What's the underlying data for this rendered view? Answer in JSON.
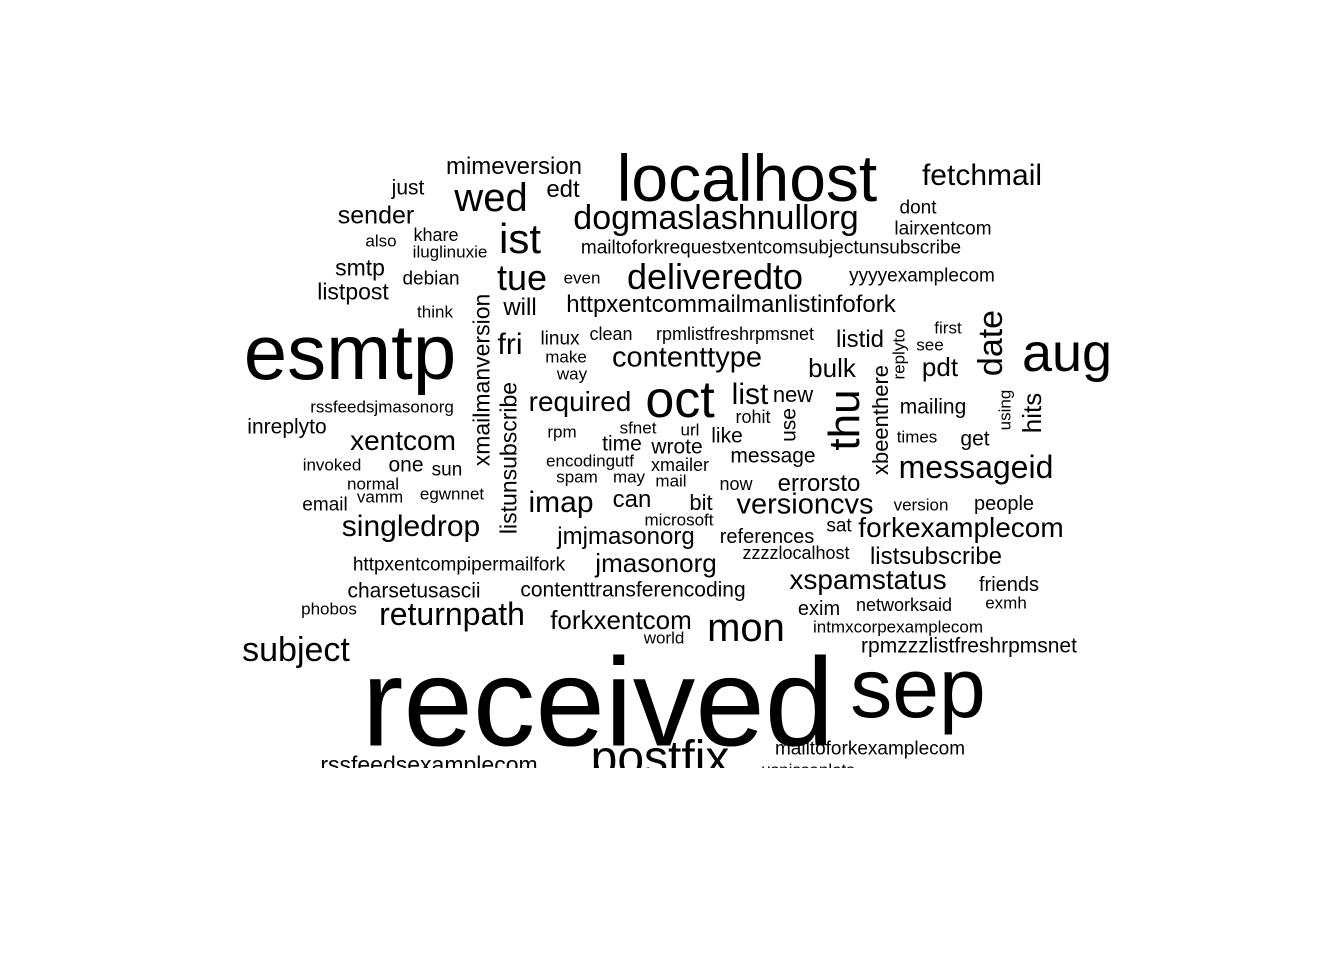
{
  "title": "",
  "text_color": "#000000",
  "background_color": "#ffffff",
  "words": [
    {
      "text": "received"
    },
    {
      "text": "esmtp"
    },
    {
      "text": "localhost"
    },
    {
      "text": "sep"
    },
    {
      "text": "aug"
    },
    {
      "text": "oct"
    },
    {
      "text": "postfix"
    },
    {
      "text": "wed"
    },
    {
      "text": "mon"
    },
    {
      "text": "thu"
    },
    {
      "text": "deliveredto"
    },
    {
      "text": "ist"
    },
    {
      "text": "date"
    },
    {
      "text": "dogmaslashnullorg"
    },
    {
      "text": "tue"
    },
    {
      "text": "messageid"
    },
    {
      "text": "subject"
    },
    {
      "text": "returnpath"
    },
    {
      "text": "singledrop"
    },
    {
      "text": "contenttype"
    },
    {
      "text": "required"
    },
    {
      "text": "fetchmail"
    },
    {
      "text": "versioncvs"
    },
    {
      "text": "forkexamplecom"
    },
    {
      "text": "xspamstatus"
    },
    {
      "text": "xentcom"
    },
    {
      "text": "imap"
    },
    {
      "text": "fri"
    },
    {
      "text": "jmasonorg"
    },
    {
      "text": "listsubscribe"
    },
    {
      "text": "forkxentcom"
    },
    {
      "text": "jmjmasonorg"
    },
    {
      "text": "httpxentcommailmanlistinfofork"
    },
    {
      "text": "mimeversion"
    },
    {
      "text": "sender"
    },
    {
      "text": "listpost"
    },
    {
      "text": "xmailmanversion"
    },
    {
      "text": "listunsubscribe"
    },
    {
      "text": "xbeenthere"
    },
    {
      "text": "hits"
    },
    {
      "text": "list"
    },
    {
      "text": "bulk"
    },
    {
      "text": "pdt"
    },
    {
      "text": "listid"
    },
    {
      "text": "errorsto"
    },
    {
      "text": "can"
    },
    {
      "text": "will"
    },
    {
      "text": "edt"
    },
    {
      "text": "smtp"
    },
    {
      "text": "mailing"
    },
    {
      "text": "new"
    },
    {
      "text": "use"
    },
    {
      "text": "charsetusascii"
    },
    {
      "text": "contenttransferencoding"
    },
    {
      "text": "inreplyto"
    },
    {
      "text": "rssfeedsexamplecom"
    },
    {
      "text": "rpmzzzlistfreshrpmsnet"
    },
    {
      "text": "mailtoforkexamplecom"
    },
    {
      "text": "bit"
    },
    {
      "text": "message"
    },
    {
      "text": "like"
    },
    {
      "text": "wrote"
    },
    {
      "text": "references"
    },
    {
      "text": "time"
    },
    {
      "text": "get"
    },
    {
      "text": "one"
    },
    {
      "text": "just"
    },
    {
      "text": "exim"
    },
    {
      "text": "people"
    },
    {
      "text": "friends"
    },
    {
      "text": "debian"
    },
    {
      "text": "linux"
    },
    {
      "text": "mailtoforkrequestxentcomsubjectunsubscribe"
    },
    {
      "text": "yyyyexamplecom"
    },
    {
      "text": "dont"
    },
    {
      "text": "lairxentcom"
    },
    {
      "text": "khare"
    },
    {
      "text": "rssfeedsjmasonorg"
    },
    {
      "text": "httpxentcompipermailfork"
    },
    {
      "text": "zzzzlocalhost"
    },
    {
      "text": "sun"
    },
    {
      "text": "invoked"
    },
    {
      "text": "email"
    },
    {
      "text": "vamm"
    },
    {
      "text": "egwnnet"
    },
    {
      "text": "normal"
    },
    {
      "text": "encodingutf"
    },
    {
      "text": "xmailer"
    },
    {
      "text": "now"
    },
    {
      "text": "rohit"
    },
    {
      "text": "sat"
    },
    {
      "text": "networksaid"
    },
    {
      "text": "exmh"
    },
    {
      "text": "also"
    },
    {
      "text": "iluglinuxie"
    },
    {
      "text": "think"
    },
    {
      "text": "even"
    },
    {
      "text": "clean"
    },
    {
      "text": "rpmlistfreshrpmsnet"
    },
    {
      "text": "make"
    },
    {
      "text": "way"
    },
    {
      "text": "rpm"
    },
    {
      "text": "sfnet"
    },
    {
      "text": "url"
    },
    {
      "text": "spam"
    },
    {
      "text": "may"
    },
    {
      "text": "mail"
    },
    {
      "text": "microsoft"
    },
    {
      "text": "intmxcorpexamplecom"
    },
    {
      "text": "world"
    },
    {
      "text": "phobos"
    },
    {
      "text": "version"
    },
    {
      "text": "first"
    },
    {
      "text": "see"
    },
    {
      "text": "replyto"
    },
    {
      "text": "using"
    },
    {
      "text": "times"
    },
    {
      "text": "usnissanlots"
    }
  ]
}
